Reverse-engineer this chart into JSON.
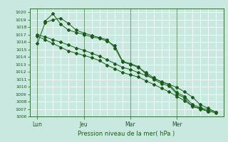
{
  "title": "Pression niveau de la mer( hPa )",
  "bg_color": "#c8e8e0",
  "grid_color": "#ffffff",
  "line_color": "#1a5c1a",
  "ylim": [
    1006,
    1020.5
  ],
  "yticks": [
    1006,
    1007,
    1008,
    1009,
    1010,
    1011,
    1012,
    1013,
    1014,
    1015,
    1016,
    1017,
    1018,
    1019,
    1020
  ],
  "day_labels": [
    "Lun",
    "Jeu",
    "Mar",
    "Mer"
  ],
  "day_positions": [
    1,
    7,
    13,
    19
  ],
  "vline_positions": [
    1,
    7,
    13,
    19
  ],
  "xlim": [
    0,
    25
  ],
  "num_x_grid": 25,
  "series1": [
    [
      1,
      1017.0
    ],
    [
      2,
      1016.7
    ],
    [
      3,
      1016.3
    ],
    [
      4,
      1016.0
    ],
    [
      5,
      1015.6
    ],
    [
      6,
      1015.2
    ],
    [
      7,
      1014.9
    ],
    [
      8,
      1014.5
    ],
    [
      9,
      1014.1
    ],
    [
      10,
      1013.6
    ],
    [
      11,
      1013.1
    ],
    [
      12,
      1012.6
    ],
    [
      13,
      1012.3
    ],
    [
      14,
      1011.9
    ],
    [
      15,
      1011.5
    ],
    [
      16,
      1011.1
    ],
    [
      17,
      1010.7
    ],
    [
      18,
      1010.3
    ],
    [
      19,
      1009.9
    ],
    [
      20,
      1009.3
    ],
    [
      21,
      1008.6
    ],
    [
      22,
      1007.6
    ],
    [
      23,
      1007.1
    ],
    [
      24,
      1006.6
    ]
  ],
  "series2": [
    [
      1,
      1016.8
    ],
    [
      2,
      1016.3
    ],
    [
      3,
      1015.8
    ],
    [
      4,
      1015.3
    ],
    [
      5,
      1014.8
    ],
    [
      6,
      1014.5
    ],
    [
      7,
      1014.2
    ],
    [
      8,
      1013.9
    ],
    [
      9,
      1013.5
    ],
    [
      10,
      1012.9
    ],
    [
      11,
      1012.4
    ],
    [
      12,
      1011.9
    ],
    [
      13,
      1011.6
    ],
    [
      14,
      1011.3
    ],
    [
      15,
      1010.8
    ],
    [
      16,
      1010.3
    ],
    [
      17,
      1009.8
    ],
    [
      18,
      1009.3
    ],
    [
      19,
      1008.7
    ],
    [
      20,
      1008.1
    ],
    [
      21,
      1007.4
    ],
    [
      22,
      1007.0
    ],
    [
      23,
      1006.7
    ],
    [
      24,
      1006.5
    ]
  ],
  "series3": [
    [
      1,
      1015.8
    ],
    [
      2,
      1018.6
    ],
    [
      3,
      1019.0
    ],
    [
      4,
      1019.2
    ],
    [
      5,
      1018.5
    ],
    [
      6,
      1017.6
    ],
    [
      7,
      1017.2
    ],
    [
      8,
      1016.9
    ],
    [
      9,
      1016.6
    ],
    [
      10,
      1016.3
    ],
    [
      11,
      1015.2
    ],
    [
      12,
      1013.3
    ],
    [
      13,
      1013.0
    ],
    [
      14,
      1012.6
    ],
    [
      15,
      1011.9
    ],
    [
      16,
      1011.2
    ],
    [
      17,
      1010.6
    ],
    [
      18,
      1010.3
    ],
    [
      19,
      1009.2
    ],
    [
      20,
      1008.7
    ],
    [
      21,
      1007.6
    ],
    [
      22,
      1007.2
    ],
    [
      23,
      1006.9
    ],
    [
      24,
      1006.6
    ]
  ],
  "series4": [
    [
      2,
      1018.8
    ],
    [
      3,
      1019.8
    ],
    [
      4,
      1018.4
    ],
    [
      5,
      1017.6
    ],
    [
      6,
      1017.3
    ],
    [
      7,
      1017.0
    ],
    [
      8,
      1016.7
    ],
    [
      9,
      1016.5
    ],
    [
      10,
      1016.1
    ],
    [
      11,
      1015.5
    ],
    [
      12,
      1013.4
    ],
    [
      13,
      1013.1
    ],
    [
      14,
      1012.7
    ],
    [
      15,
      1011.7
    ],
    [
      16,
      1011.0
    ],
    [
      17,
      1010.4
    ],
    [
      18,
      1010.1
    ],
    [
      19,
      1009.0
    ],
    [
      20,
      1008.5
    ],
    [
      21,
      1007.3
    ],
    [
      22,
      1007.1
    ],
    [
      23,
      1006.7
    ]
  ]
}
